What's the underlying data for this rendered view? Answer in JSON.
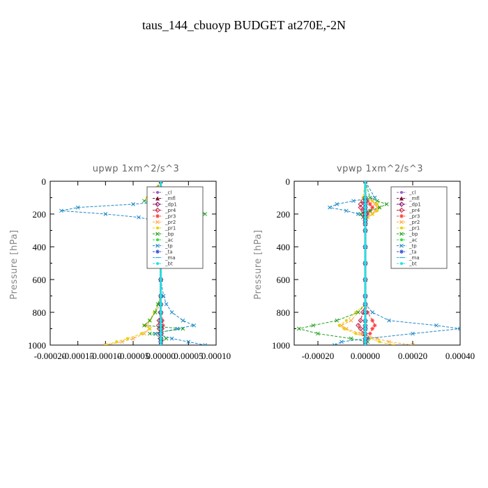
{
  "figure": {
    "title": "taus_144_cbuoyp  BUDGET at270E,-2N"
  },
  "chart_data": [
    {
      "type": "line",
      "title": "upwp   1xm^2/s^3",
      "ylabel": "Pressure [hPa]",
      "xlabel": "",
      "xlim": [
        -0.0002,
        0.0001
      ],
      "ylim": [
        0,
        1000
      ],
      "y_inverted": true,
      "xticks": [
        "-0.00020",
        "-0.00015",
        "-0.00010",
        "-0.00005",
        "0.00000",
        "0.00005",
        "0.00010"
      ],
      "xtick_values": [
        -0.0002,
        -0.00015,
        -0.0001,
        -5e-05,
        0,
        5e-05,
        0.0001
      ],
      "yticks": [
        "0",
        "200",
        "400",
        "600",
        "800",
        "1000"
      ],
      "ytick_values": [
        0,
        200,
        400,
        600,
        800,
        1000
      ],
      "legend_position": "top-right",
      "y": [
        0,
        100,
        120,
        140,
        160,
        180,
        200,
        220,
        240,
        260,
        300,
        400,
        500,
        600,
        700,
        750,
        800,
        850,
        880,
        900,
        930,
        960,
        980,
        1000
      ],
      "series": [
        {
          "name": "_cl",
          "color": "#9a5fc8",
          "marker": "circle",
          "values": [
            0,
            0,
            0,
            0,
            0,
            0,
            0,
            0,
            0,
            0,
            0,
            0,
            0,
            0,
            0,
            0,
            0,
            0,
            0,
            0,
            0,
            0,
            0,
            0
          ]
        },
        {
          "name": "_mfl",
          "color": "#7a1030",
          "marker": "triangle",
          "values": [
            0,
            0,
            0,
            0,
            0,
            0,
            0,
            0,
            0,
            0,
            0,
            0,
            0,
            0,
            0,
            0,
            0,
            0,
            0,
            0,
            0,
            0,
            0,
            0
          ]
        },
        {
          "name": "_dp1",
          "color": "#800060",
          "marker": "diamond",
          "values": [
            0,
            0,
            0,
            0,
            0,
            0,
            0,
            0,
            0,
            0,
            0,
            0,
            0,
            0,
            0,
            0,
            0,
            0,
            0,
            0,
            0,
            0,
            0,
            0
          ]
        },
        {
          "name": "_pr4",
          "color": "#c21a3a",
          "marker": "diamond",
          "values": [
            0,
            0,
            -4e-06,
            -6e-06,
            -7e-06,
            -6e-06,
            -4e-06,
            -2e-06,
            0,
            0,
            0,
            0,
            0,
            0,
            0,
            0,
            -1e-06,
            -3e-06,
            -4e-06,
            -3e-06,
            -2e-06,
            -1e-06,
            0,
            0
          ]
        },
        {
          "name": "_pr3",
          "color": "#ff3c3c",
          "marker": "star",
          "values": [
            0,
            0,
            5e-06,
            8e-06,
            9e-06,
            8e-06,
            6e-06,
            3e-06,
            1e-06,
            0,
            0,
            0,
            0,
            0,
            0,
            0,
            1e-06,
            3e-06,
            4e-06,
            3e-06,
            2e-06,
            1e-06,
            0,
            0
          ]
        },
        {
          "name": "_pr2",
          "color": "#ffa640",
          "marker": "x",
          "values": [
            0,
            -2e-05,
            -1.5e-05,
            -1e-05,
            -5e-06,
            0,
            0,
            0,
            0,
            0,
            0,
            0,
            0,
            0,
            0,
            0,
            -1e-05,
            -2e-05,
            -2.5e-05,
            -2e-05,
            -3e-05,
            -5e-05,
            -7e-05,
            -0.0001
          ]
        },
        {
          "name": "_pr1",
          "color": "#e8d000",
          "marker": "circle",
          "values": [
            0,
            -2.5e-05,
            -2e-05,
            -1.2e-05,
            -6e-06,
            0,
            0,
            0,
            0,
            0,
            0,
            0,
            0,
            0,
            0,
            -5e-06,
            -1.2e-05,
            -2e-05,
            -3e-05,
            -2e-05,
            -3.5e-05,
            -6e-05,
            -8e-05,
            -0.0001
          ]
        },
        {
          "name": "_bp",
          "color": "#1fa01f",
          "marker": "x",
          "values": [
            0,
            -1.5e-05,
            -3e-05,
            -1e-05,
            2e-05,
            6e-05,
            8e-05,
            3e-05,
            5e-06,
            0,
            0,
            0,
            0,
            0,
            0,
            -5e-06,
            -1e-05,
            -2e-05,
            -3e-05,
            4e-05,
            -2e-05,
            1e-05,
            0,
            0
          ]
        },
        {
          "name": "_ac",
          "color": "#33dd33",
          "marker": "circle",
          "values": [
            0,
            0,
            0,
            0,
            0,
            0,
            0,
            0,
            0,
            0,
            0,
            0,
            0,
            0,
            0,
            0,
            0,
            0,
            0,
            0,
            0,
            0,
            0,
            0
          ]
        },
        {
          "name": "_tp",
          "color": "#1e88c8",
          "marker": "x",
          "values": [
            0,
            5e-06,
            2e-05,
            -5e-05,
            -0.00015,
            -0.00018,
            -0.0001,
            -4e-05,
            -1e-05,
            0,
            0,
            0,
            0,
            0,
            5e-06,
            1e-05,
            2e-05,
            4e-05,
            6e-05,
            3e-05,
            -1e-05,
            2e-05,
            5e-05,
            8e-05
          ]
        },
        {
          "name": "_ta",
          "color": "#3050d0",
          "marker": "star",
          "values": [
            0,
            0,
            0,
            0,
            0,
            0,
            0,
            0,
            0,
            0,
            0,
            0,
            0,
            0,
            0,
            0,
            0,
            0,
            0,
            0,
            0,
            0,
            0,
            0
          ]
        },
        {
          "name": "_ma",
          "color": "#2ab0e0",
          "marker": "dash",
          "values": [
            0,
            0,
            0,
            0,
            0,
            0,
            0,
            0,
            0,
            0,
            0,
            0,
            0,
            0,
            0,
            0,
            0,
            0,
            0,
            0,
            0,
            0,
            0,
            0
          ]
        },
        {
          "name": "_bt",
          "color": "#29e0e0",
          "marker": "circle",
          "values": [
            0,
            0,
            0,
            0,
            0,
            0,
            0,
            0,
            0,
            0,
            0,
            0,
            0,
            0,
            0,
            0,
            0,
            0,
            0,
            0,
            0,
            0,
            0,
            0
          ]
        }
      ]
    },
    {
      "type": "line",
      "title": "vpwp   1xm^2/s^3",
      "ylabel": "Pressure [hPa]",
      "xlabel": "",
      "xlim": [
        -0.0003,
        0.0004
      ],
      "ylim": [
        0,
        1000
      ],
      "y_inverted": true,
      "xticks": [
        "-0.00020",
        "0.00000",
        "0.00020",
        "0.00040"
      ],
      "xtick_values": [
        -0.0002,
        0,
        0.0002,
        0.0004
      ],
      "yticks": [
        "0",
        "200",
        "400",
        "600",
        "800",
        "1000"
      ],
      "ytick_values": [
        0,
        200,
        400,
        600,
        800,
        1000
      ],
      "legend_position": "top-right",
      "y": [
        0,
        100,
        120,
        140,
        160,
        180,
        200,
        220,
        240,
        260,
        300,
        400,
        500,
        600,
        700,
        750,
        800,
        850,
        880,
        900,
        930,
        960,
        980,
        1000
      ],
      "series": [
        {
          "name": "_cl",
          "color": "#9a5fc8",
          "marker": "circle",
          "values": [
            0,
            0,
            0,
            0,
            0,
            0,
            0,
            0,
            0,
            0,
            0,
            0,
            0,
            0,
            0,
            0,
            0,
            0,
            0,
            0,
            0,
            0,
            0,
            0
          ]
        },
        {
          "name": "_mfl",
          "color": "#7a1030",
          "marker": "triangle",
          "values": [
            0,
            0,
            0,
            0,
            0,
            0,
            0,
            0,
            0,
            0,
            0,
            0,
            0,
            0,
            0,
            0,
            0,
            0,
            0,
            0,
            0,
            0,
            0,
            0
          ]
        },
        {
          "name": "_dp1",
          "color": "#800060",
          "marker": "diamond",
          "values": [
            0,
            0,
            0,
            0,
            0,
            0,
            0,
            0,
            0,
            0,
            0,
            0,
            0,
            0,
            0,
            0,
            0,
            0,
            0,
            0,
            0,
            0,
            0,
            0
          ]
        },
        {
          "name": "_pr4",
          "color": "#c21a3a",
          "marker": "diamond",
          "values": [
            0,
            0,
            -1e-05,
            -2e-05,
            -2e-05,
            -1e-05,
            -1e-05,
            0,
            0,
            0,
            0,
            0,
            0,
            0,
            0,
            0,
            -1e-05,
            -2e-05,
            -3e-05,
            -2e-05,
            -1e-05,
            0,
            0,
            0
          ]
        },
        {
          "name": "_pr3",
          "color": "#ff3c3c",
          "marker": "star",
          "values": [
            0,
            0,
            1e-05,
            2e-05,
            3e-05,
            2e-05,
            1e-05,
            0,
            0,
            0,
            0,
            0,
            0,
            0,
            0,
            0,
            1e-05,
            3e-05,
            4e-05,
            3e-05,
            2e-05,
            1e-05,
            0,
            0
          ]
        },
        {
          "name": "_pr2",
          "color": "#ffa640",
          "marker": "x",
          "values": [
            0,
            0,
            3e-05,
            4e-05,
            5e-05,
            4e-05,
            3e-05,
            1e-05,
            0,
            0,
            0,
            0,
            0,
            0,
            0,
            0,
            -3e-05,
            -6e-05,
            -0.0001,
            -8e-05,
            -2e-05,
            5e-05,
            0.0001,
            0.0002
          ]
        },
        {
          "name": "_pr1",
          "color": "#e8d000",
          "marker": "circle",
          "values": [
            0,
            -1e-05,
            3e-05,
            5e-05,
            6e-05,
            5e-05,
            3e-05,
            1e-05,
            0,
            0,
            0,
            0,
            0,
            0,
            0,
            0,
            -4e-05,
            -8e-05,
            -0.00011,
            -9e-05,
            -4e-05,
            2e-05,
            6e-05,
            0.00012
          ]
        },
        {
          "name": "_bp",
          "color": "#1fa01f",
          "marker": "x",
          "values": [
            0,
            2e-05,
            5e-05,
            9e-05,
            6e-05,
            2e-05,
            -2e-05,
            -1e-05,
            0,
            0,
            0,
            0,
            0,
            0,
            0,
            0,
            -3e-05,
            -0.00012,
            -0.00022,
            -0.00028,
            -0.0002,
            -6e-05,
            1e-05,
            0
          ]
        },
        {
          "name": "_ac",
          "color": "#33dd33",
          "marker": "circle",
          "values": [
            0,
            0,
            0,
            0,
            0,
            0,
            0,
            0,
            0,
            0,
            0,
            0,
            0,
            0,
            0,
            0,
            0,
            0,
            0,
            0,
            0,
            0,
            0,
            0
          ]
        },
        {
          "name": "_tp",
          "color": "#1e88c8",
          "marker": "x",
          "values": [
            0,
            4e-05,
            -5e-05,
            -0.00012,
            -0.00015,
            -8e-05,
            -3e-05,
            0,
            0,
            0,
            0,
            0,
            0,
            0,
            0,
            0,
            3e-05,
            0.0001,
            0.0003,
            0.0004,
            0.0002,
            1e-05,
            -0.0001,
            -0.00013
          ]
        },
        {
          "name": "_ta",
          "color": "#3050d0",
          "marker": "star",
          "values": [
            0,
            0,
            0,
            0,
            0,
            0,
            0,
            0,
            0,
            0,
            0,
            0,
            0,
            0,
            0,
            0,
            0,
            0,
            0,
            0,
            0,
            0,
            0,
            0
          ]
        },
        {
          "name": "_ma",
          "color": "#2ab0e0",
          "marker": "dash",
          "values": [
            0,
            0,
            0,
            0,
            0,
            0,
            0,
            0,
            0,
            0,
            0,
            0,
            0,
            0,
            0,
            0,
            0,
            0,
            0,
            0,
            0,
            0,
            0,
            0
          ]
        },
        {
          "name": "_bt",
          "color": "#29e0e0",
          "marker": "circle",
          "values": [
            0,
            0,
            0,
            0,
            0,
            0,
            0,
            0,
            0,
            0,
            0,
            0,
            0,
            0,
            0,
            0,
            0,
            0,
            0,
            0,
            0,
            0,
            0,
            0
          ]
        }
      ]
    }
  ]
}
